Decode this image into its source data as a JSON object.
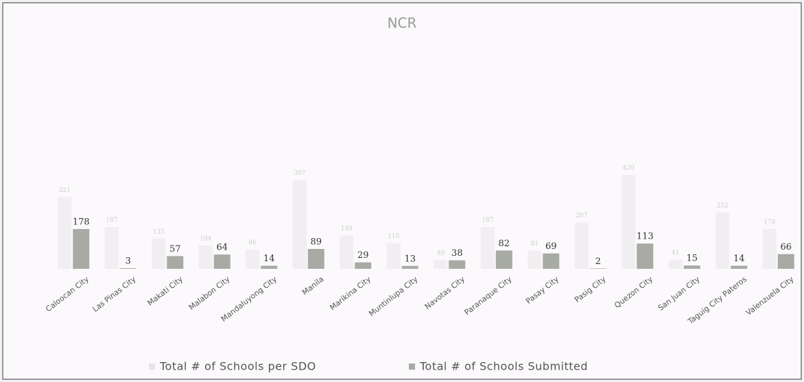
{
  "chart_data": {
    "type": "bar",
    "title": "NCR",
    "categories": [
      "Caloocan City",
      "Las Pinas City",
      "Makati City",
      "Malabon City",
      "Mandaluyong City",
      "Manila",
      "Marikina City",
      "Muntinlupa City",
      "Navotas City",
      "Paranaque City",
      "Pasay City",
      "Pasig City",
      "Quezon City",
      "San Juan City",
      "Taguig City Pateros",
      "Valenzuela City"
    ],
    "series": [
      {
        "name": "Total # of Schools per SDO",
        "color": "#f0eef0",
        "values": [
          321,
          187,
          135,
          104,
          86,
          397,
          149,
          115,
          40,
          187,
          81,
          207,
          420,
          41,
          252,
          178
        ]
      },
      {
        "name": "Total # of Schools Submitted",
        "color": "#a8aaa4",
        "values": [
          178,
          3,
          57,
          64,
          14,
          89,
          29,
          13,
          38,
          82,
          69,
          2,
          113,
          15,
          14,
          66
        ]
      }
    ]
  }
}
